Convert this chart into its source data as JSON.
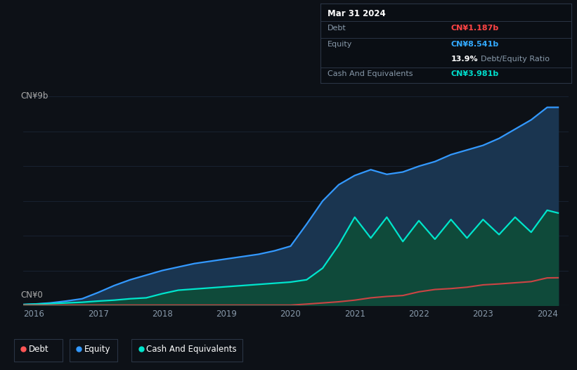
{
  "background_color": "#0d1117",
  "plot_bg_color": "#0d1117",
  "tooltip": {
    "date": "Mar 31 2024",
    "debt_label": "Debt",
    "debt_value": "CN¥1.187b",
    "equity_label": "Equity",
    "equity_value": "CN¥8.541b",
    "ratio_value": "13.9%",
    "ratio_label": "Debt/Equity Ratio",
    "cash_label": "Cash And Equivalents",
    "cash_value": "CN¥3.981b"
  },
  "y_label_top": "CN¥9b",
  "y_label_bottom": "CN¥0",
  "x_ticks": [
    "2016",
    "2017",
    "2018",
    "2019",
    "2020",
    "2021",
    "2022",
    "2023",
    "2024"
  ],
  "legend": [
    {
      "label": "Debt",
      "color": "#ff5555"
    },
    {
      "label": "Equity",
      "color": "#3399ff"
    },
    {
      "label": "Cash And Equivalents",
      "color": "#00e5cc"
    }
  ],
  "equity_color": "#3399ff",
  "equity_fill_top": "#1a3550",
  "equity_fill_bottom": "#0d1f33",
  "debt_color": "#cc4444",
  "cash_color": "#00e5cc",
  "cash_fill_top": "#0f4a3a",
  "cash_fill_bottom": "#0a2a20",
  "grid_color": "#1a2535",
  "years": [
    2015.83,
    2016.0,
    2016.25,
    2016.5,
    2016.75,
    2017.0,
    2017.25,
    2017.5,
    2017.75,
    2018.0,
    2018.25,
    2018.5,
    2018.75,
    2019.0,
    2019.25,
    2019.5,
    2019.75,
    2020.0,
    2020.25,
    2020.5,
    2020.75,
    2021.0,
    2021.25,
    2021.5,
    2021.75,
    2022.0,
    2022.25,
    2022.5,
    2022.75,
    2023.0,
    2023.25,
    2023.5,
    2023.75,
    2024.0,
    2024.17
  ],
  "equity": [
    0.03,
    0.05,
    0.1,
    0.18,
    0.28,
    0.55,
    0.85,
    1.1,
    1.3,
    1.5,
    1.65,
    1.8,
    1.9,
    2.0,
    2.1,
    2.2,
    2.35,
    2.55,
    3.5,
    4.5,
    5.2,
    5.6,
    5.85,
    5.65,
    5.75,
    6.0,
    6.2,
    6.5,
    6.7,
    6.9,
    7.2,
    7.6,
    8.0,
    8.54,
    8.541
  ],
  "debt": [
    0.005,
    0.005,
    0.005,
    0.005,
    0.005,
    0.005,
    0.005,
    0.005,
    0.005,
    0.005,
    0.005,
    0.005,
    0.005,
    0.005,
    0.005,
    0.005,
    0.005,
    0.005,
    0.05,
    0.1,
    0.15,
    0.22,
    0.32,
    0.38,
    0.42,
    0.58,
    0.68,
    0.72,
    0.78,
    0.88,
    0.92,
    0.97,
    1.02,
    1.18,
    1.187
  ],
  "cash": [
    0.03,
    0.05,
    0.07,
    0.1,
    0.13,
    0.18,
    0.22,
    0.28,
    0.32,
    0.5,
    0.65,
    0.7,
    0.75,
    0.8,
    0.85,
    0.9,
    0.95,
    1.0,
    1.1,
    1.6,
    2.6,
    3.8,
    2.9,
    3.8,
    2.75,
    3.65,
    2.85,
    3.7,
    2.9,
    3.7,
    3.05,
    3.8,
    3.15,
    4.1,
    3.981
  ],
  "ylim": [
    0,
    9.5
  ],
  "xlim": [
    2015.83,
    2024.33
  ],
  "grid_y_vals": [
    0,
    1.5,
    3.0,
    4.5,
    6.0,
    7.5,
    9.0
  ]
}
